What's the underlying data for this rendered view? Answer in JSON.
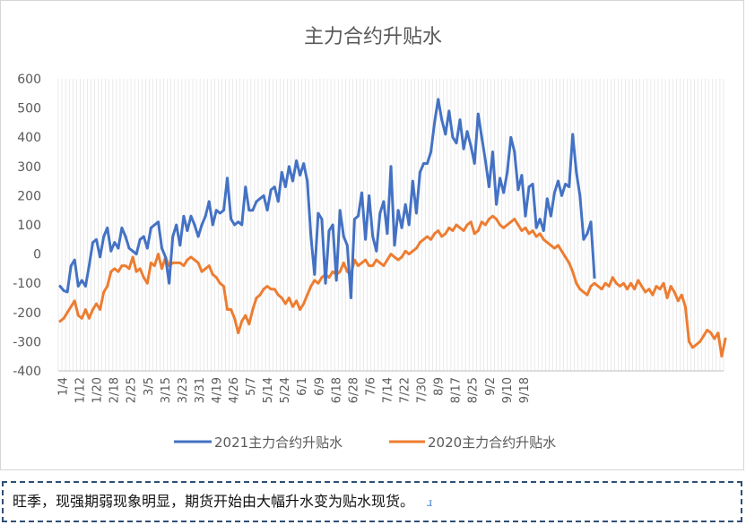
{
  "chart_data": {
    "type": "line",
    "title": "主力合约升贴水",
    "xlabel": "",
    "ylabel": "",
    "ylim": [
      -400,
      600
    ],
    "yticks": [
      600,
      500,
      400,
      300,
      200,
      100,
      0,
      -100,
      -200,
      -300,
      -400
    ],
    "xtick_labels": [
      "1/4",
      "1/12",
      "1/20",
      "2/18",
      "2/25",
      "3/5",
      "3/15",
      "3/23",
      "3/31",
      "4/19",
      "4/26",
      "5/7",
      "5/14",
      "5/24",
      "6/1",
      "6/9",
      "6/18",
      "6/28",
      "7/6",
      "7/14",
      "7/22",
      "7/30",
      "8/9",
      "8/17",
      "8/25",
      "9/2",
      "9/10",
      "9/18"
    ],
    "grid": "vertical-minor",
    "legend": "bottom",
    "series": [
      {
        "name": "2021主力合约升贴水",
        "color": "#4472C4",
        "values": [
          -110,
          -125,
          -130,
          -40,
          -20,
          -110,
          -90,
          -110,
          -40,
          40,
          50,
          -10,
          60,
          90,
          10,
          40,
          20,
          90,
          60,
          20,
          10,
          0,
          50,
          60,
          20,
          90,
          100,
          110,
          20,
          -10,
          -100,
          60,
          100,
          30,
          130,
          80,
          130,
          100,
          60,
          100,
          130,
          180,
          100,
          150,
          140,
          150,
          260,
          120,
          100,
          110,
          100,
          230,
          150,
          150,
          180,
          190,
          200,
          150,
          220,
          230,
          180,
          280,
          230,
          300,
          250,
          320,
          270,
          310,
          250,
          60,
          -70,
          140,
          120,
          -100,
          80,
          100,
          -90,
          150,
          60,
          30,
          -150,
          120,
          130,
          210,
          50,
          200,
          60,
          10,
          140,
          180,
          70,
          300,
          30,
          150,
          90,
          170,
          100,
          250,
          140,
          280,
          310,
          310,
          350,
          450,
          530,
          460,
          410,
          490,
          400,
          380,
          460,
          360,
          420,
          370,
          310,
          480,
          400,
          320,
          230,
          350,
          170,
          260,
          210,
          280,
          400,
          350,
          220,
          270,
          130,
          230,
          240,
          90,
          120,
          80,
          190,
          130,
          210,
          250,
          200,
          240,
          230,
          410,
          280,
          200,
          50,
          70,
          110,
          -80
        ]
      },
      {
        "name": "2020主力合约升贴水",
        "color": "#ED7D31",
        "values": [
          -230,
          -220,
          -200,
          -180,
          -160,
          -210,
          -220,
          -190,
          -220,
          -190,
          -170,
          -190,
          -130,
          -110,
          -60,
          -50,
          -60,
          -40,
          -40,
          -50,
          -10,
          -60,
          -50,
          -80,
          -100,
          -30,
          -40,
          0,
          -50,
          -10,
          -40,
          -30,
          -30,
          -30,
          -40,
          -20,
          -10,
          -20,
          -30,
          -60,
          -50,
          -40,
          -70,
          -80,
          -100,
          -110,
          -190,
          -190,
          -220,
          -270,
          -230,
          -210,
          -240,
          -190,
          -150,
          -140,
          -120,
          -110,
          -120,
          -120,
          -140,
          -150,
          -170,
          -150,
          -180,
          -160,
          -190,
          -170,
          -140,
          -110,
          -90,
          -100,
          -80,
          -70,
          -80,
          -60,
          -70,
          -60,
          -30,
          -60,
          -70,
          -20,
          -40,
          -30,
          -20,
          -40,
          -40,
          -20,
          -30,
          -40,
          -20,
          0,
          -10,
          -20,
          -10,
          10,
          0,
          10,
          20,
          40,
          50,
          60,
          50,
          70,
          80,
          60,
          70,
          90,
          80,
          100,
          90,
          80,
          100,
          110,
          70,
          80,
          110,
          100,
          120,
          130,
          120,
          100,
          90,
          100,
          110,
          120,
          100,
          80,
          90,
          70,
          80,
          60,
          70,
          50,
          40,
          30,
          20,
          30,
          10,
          -10,
          -30,
          -60,
          -100,
          -120,
          -130,
          -140,
          -110,
          -100,
          -110,
          -120,
          -100,
          -110,
          -80,
          -100,
          -110,
          -100,
          -120,
          -100,
          -120,
          -90,
          -110,
          -130,
          -120,
          -140,
          -110,
          -120,
          -100,
          -150,
          -110,
          -130,
          -160,
          -140,
          -180,
          -300,
          -320,
          -310,
          -300,
          -280,
          -260,
          -270,
          -290,
          -270,
          -350,
          -290
        ]
      }
    ]
  },
  "caption": {
    "text": "旺季，现强期弱现象明显，期货开始由大幅升水变为贴水现货。",
    "mark": "ɹ"
  }
}
